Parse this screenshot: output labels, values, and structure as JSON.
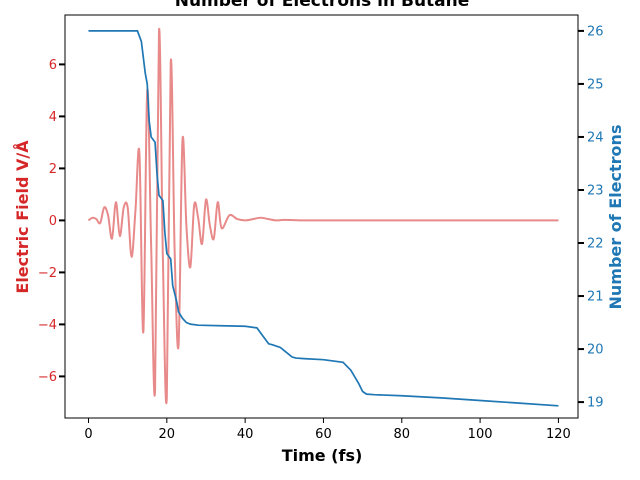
{
  "chart_data": {
    "type": "line",
    "title": "Number of Electrons in Butane",
    "xlabel": "Time (fs)",
    "ylabel_left": "Electric Field V/Å",
    "ylabel_right": "Number of Electrons",
    "xlim": [
      -6,
      125
    ],
    "ylim_left": [
      -7.6,
      7.9
    ],
    "ylim_right": [
      18.7,
      26.3
    ],
    "x_ticks": [
      0,
      20,
      40,
      60,
      80,
      100,
      120
    ],
    "y_ticks_left": [
      -6,
      -4,
      -2,
      0,
      2,
      4,
      6
    ],
    "y_ticks_right": [
      19,
      20,
      21,
      22,
      23,
      24,
      25,
      26
    ],
    "grid": false,
    "colors": {
      "left": "#d62728",
      "field_line": "#e88a8a",
      "right": "#1f77b4"
    },
    "series": [
      {
        "axis": "left",
        "x": [
          0,
          1,
          2,
          3,
          4,
          5,
          6,
          7,
          8,
          9,
          10,
          11,
          12,
          13,
          14,
          15,
          16,
          17,
          18,
          19,
          20,
          21,
          22,
          23,
          24,
          25,
          26,
          27,
          28,
          29,
          30,
          31,
          32,
          33,
          34,
          36,
          38,
          40,
          42,
          44,
          46,
          48,
          50,
          55,
          60,
          70,
          80,
          90,
          100,
          110,
          120
        ],
        "values": [
          0.0,
          0.1,
          0.05,
          -0.1,
          0.5,
          0.2,
          -0.7,
          0.7,
          -0.6,
          0.5,
          0.5,
          -1.4,
          0.4,
          2.6,
          -4.3,
          5.0,
          -1.0,
          -6.5,
          7.3,
          -1.5,
          -6.8,
          6.1,
          -1.2,
          -4.8,
          3.1,
          -0.2,
          -1.8,
          0.6,
          0.1,
          -0.9,
          0.8,
          -0.2,
          -0.7,
          0.7,
          -0.3,
          0.2,
          0.05,
          0.0,
          0.05,
          0.1,
          0.05,
          0.0,
          0.02,
          0.0,
          0.0,
          0.0,
          0.0,
          0.0,
          0.0,
          0.0,
          0.0
        ]
      },
      {
        "axis": "right",
        "x": [
          0,
          5,
          10,
          12.5,
          13.5,
          14.5,
          15,
          15.5,
          16,
          17,
          17.5,
          18,
          19,
          19.5,
          20,
          21,
          21.5,
          22.5,
          23,
          24,
          25,
          26,
          28,
          34,
          40,
          43,
          45,
          46,
          47,
          49,
          50,
          52,
          53,
          55,
          60,
          65,
          67,
          69,
          70,
          71,
          73,
          80,
          90,
          100,
          110,
          120
        ],
        "values": [
          26.0,
          26.0,
          26.0,
          26.0,
          25.8,
          25.2,
          25.0,
          24.3,
          24.0,
          23.9,
          23.3,
          22.9,
          22.8,
          22.2,
          21.8,
          21.7,
          21.2,
          20.9,
          20.7,
          20.58,
          20.5,
          20.47,
          20.45,
          20.44,
          20.43,
          20.4,
          20.2,
          20.1,
          20.08,
          20.03,
          19.97,
          19.85,
          19.83,
          19.82,
          19.8,
          19.75,
          19.6,
          19.35,
          19.2,
          19.15,
          19.14,
          19.12,
          19.08,
          19.03,
          18.98,
          18.93
        ]
      }
    ]
  }
}
